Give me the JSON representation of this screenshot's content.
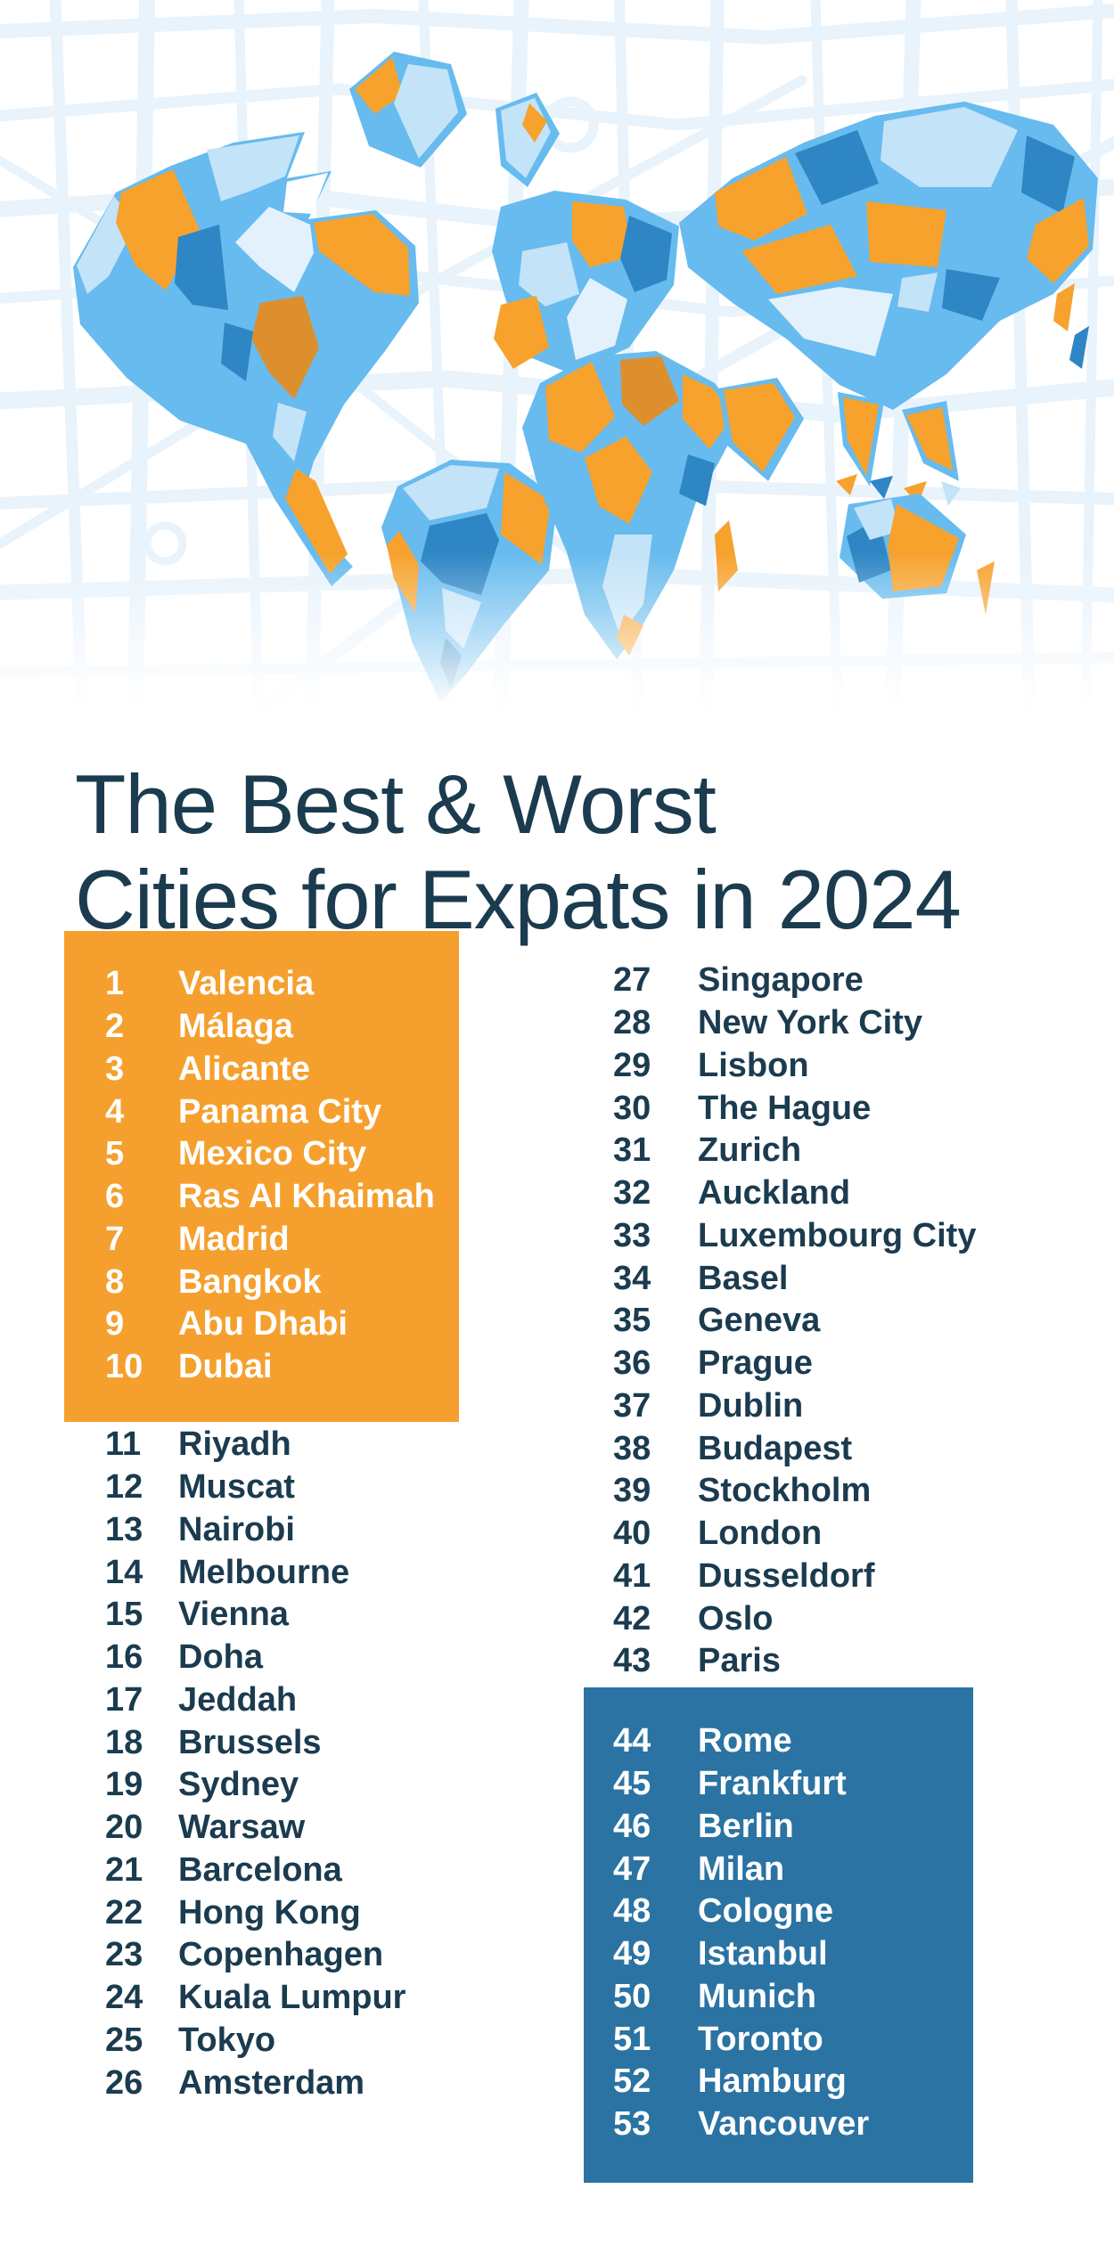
{
  "title": {
    "line1": "The Best & Worst",
    "line2": "Cities for Expats in 2024"
  },
  "palette": {
    "orange": "#F5A02E",
    "deep_blue": "#2B73A2",
    "navy_text": "#1B3B4F",
    "map_seam_blue": "#67BBEE",
    "map_dark_blue": "#2E86C4",
    "map_light_blue": "#C3E3F8",
    "map_pale_blue": "#E2F1FC",
    "map_street": "#E8F3FC",
    "map_orange": "#F6A22D",
    "map_dark_orange": "#DD8F2E",
    "box_text": "#FFFFFF"
  },
  "ranking": {
    "best_box": {
      "items": [
        {
          "rank": 1,
          "city": "Valencia"
        },
        {
          "rank": 2,
          "city": "Málaga"
        },
        {
          "rank": 3,
          "city": "Alicante"
        },
        {
          "rank": 4,
          "city": "Panama City"
        },
        {
          "rank": 5,
          "city": "Mexico City"
        },
        {
          "rank": 6,
          "city": "Ras Al Khaimah"
        },
        {
          "rank": 7,
          "city": "Madrid"
        },
        {
          "rank": 8,
          "city": "Bangkok"
        },
        {
          "rank": 9,
          "city": "Abu Dhabi"
        },
        {
          "rank": 10,
          "city": "Dubai"
        }
      ]
    },
    "left_list": {
      "items": [
        {
          "rank": 11,
          "city": "Riyadh"
        },
        {
          "rank": 12,
          "city": "Muscat"
        },
        {
          "rank": 13,
          "city": "Nairobi"
        },
        {
          "rank": 14,
          "city": "Melbourne"
        },
        {
          "rank": 15,
          "city": "Vienna"
        },
        {
          "rank": 16,
          "city": "Doha"
        },
        {
          "rank": 17,
          "city": "Jeddah"
        },
        {
          "rank": 18,
          "city": "Brussels"
        },
        {
          "rank": 19,
          "city": "Sydney"
        },
        {
          "rank": 20,
          "city": "Warsaw"
        },
        {
          "rank": 21,
          "city": "Barcelona"
        },
        {
          "rank": 22,
          "city": "Hong Kong"
        },
        {
          "rank": 23,
          "city": "Copenhagen"
        },
        {
          "rank": 24,
          "city": "Kuala Lumpur"
        },
        {
          "rank": 25,
          "city": "Tokyo"
        },
        {
          "rank": 26,
          "city": "Amsterdam"
        }
      ]
    },
    "right_list": {
      "items": [
        {
          "rank": 27,
          "city": "Singapore"
        },
        {
          "rank": 28,
          "city": "New York City"
        },
        {
          "rank": 29,
          "city": "Lisbon"
        },
        {
          "rank": 30,
          "city": "The Hague"
        },
        {
          "rank": 31,
          "city": "Zurich"
        },
        {
          "rank": 32,
          "city": "Auckland"
        },
        {
          "rank": 33,
          "city": "Luxembourg City"
        },
        {
          "rank": 34,
          "city": "Basel"
        },
        {
          "rank": 35,
          "city": "Geneva"
        },
        {
          "rank": 36,
          "city": "Prague"
        },
        {
          "rank": 37,
          "city": "Dublin"
        },
        {
          "rank": 38,
          "city": "Budapest"
        },
        {
          "rank": 39,
          "city": "Stockholm"
        },
        {
          "rank": 40,
          "city": "London"
        },
        {
          "rank": 41,
          "city": "Dusseldorf"
        },
        {
          "rank": 42,
          "city": "Oslo"
        },
        {
          "rank": 43,
          "city": "Paris"
        }
      ]
    },
    "worst_box": {
      "items": [
        {
          "rank": 44,
          "city": "Rome"
        },
        {
          "rank": 45,
          "city": "Frankfurt"
        },
        {
          "rank": 46,
          "city": "Berlin"
        },
        {
          "rank": 47,
          "city": "Milan"
        },
        {
          "rank": 48,
          "city": "Cologne"
        },
        {
          "rank": 49,
          "city": "Istanbul"
        },
        {
          "rank": 50,
          "city": "Munich"
        },
        {
          "rank": 51,
          "city": "Toronto"
        },
        {
          "rank": 52,
          "city": "Hamburg"
        },
        {
          "rank": 53,
          "city": "Vancouver"
        }
      ]
    }
  }
}
